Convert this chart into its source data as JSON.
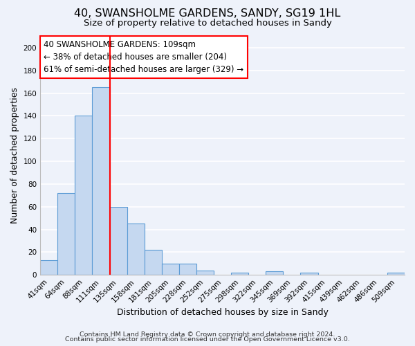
{
  "title": "40, SWANSHOLME GARDENS, SANDY, SG19 1HL",
  "subtitle": "Size of property relative to detached houses in Sandy",
  "xlabel": "Distribution of detached houses by size in Sandy",
  "ylabel": "Number of detached properties",
  "bin_labels": [
    "41sqm",
    "64sqm",
    "88sqm",
    "111sqm",
    "135sqm",
    "158sqm",
    "181sqm",
    "205sqm",
    "228sqm",
    "252sqm",
    "275sqm",
    "298sqm",
    "322sqm",
    "345sqm",
    "369sqm",
    "392sqm",
    "415sqm",
    "439sqm",
    "462sqm",
    "486sqm",
    "509sqm"
  ],
  "bar_heights": [
    13,
    72,
    140,
    165,
    60,
    45,
    22,
    10,
    10,
    4,
    0,
    2,
    0,
    3,
    0,
    2,
    0,
    0,
    0,
    0,
    2
  ],
  "bar_color": "#c5d8f0",
  "bar_edge_color": "#5b9bd5",
  "red_line_bin_index": 3,
  "annotation_line1": "40 SWANSHOLME GARDENS: 109sqm",
  "annotation_line2": "← 38% of detached houses are smaller (204)",
  "annotation_line3": "61% of semi-detached houses are larger (329) →",
  "ylim": [
    0,
    210
  ],
  "yticks": [
    0,
    20,
    40,
    60,
    80,
    100,
    120,
    140,
    160,
    180,
    200
  ],
  "footer1": "Contains HM Land Registry data © Crown copyright and database right 2024.",
  "footer2": "Contains public sector information licensed under the Open Government Licence v3.0.",
  "background_color": "#eef2fa",
  "grid_color": "#ffffff",
  "title_fontsize": 11.5,
  "subtitle_fontsize": 9.5,
  "axis_label_fontsize": 9,
  "tick_fontsize": 7.5,
  "annotation_fontsize": 8.5,
  "footer_fontsize": 6.8
}
